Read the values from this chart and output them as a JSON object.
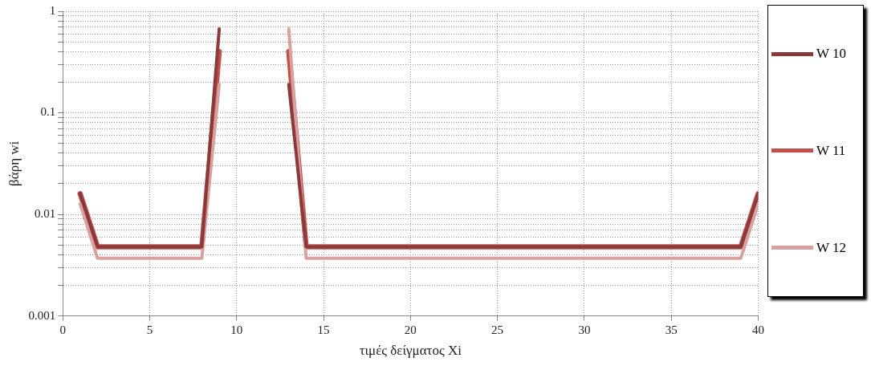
{
  "chart_data": {
    "type": "line",
    "xlabel": "τιμές δείγματος Xi",
    "ylabel": "βάρη wi",
    "log": "y",
    "grid": true,
    "legend": "right",
    "line_style": "solid",
    "marker": "none",
    "x": [
      1,
      2,
      3,
      4,
      5,
      6,
      7,
      8,
      9,
      10,
      11,
      12,
      13,
      14,
      15,
      16,
      17,
      18,
      19,
      20,
      21,
      22,
      23,
      24,
      25,
      26,
      27,
      28,
      29,
      30,
      31,
      32,
      33,
      34,
      35,
      36,
      37,
      38,
      39,
      40
    ],
    "xlim": [
      0,
      40
    ],
    "xticks": [
      0,
      5,
      10,
      15,
      20,
      25,
      30,
      35,
      40
    ],
    "ylim": [
      0.001,
      1
    ],
    "yticks": [
      0.001,
      {
        "value": 0.002,
        "label": null
      },
      {
        "value": 0.003,
        "label": null
      },
      {
        "value": 0.004,
        "label": null
      },
      {
        "value": 0.005,
        "label": null
      },
      {
        "value": 0.006,
        "label": null
      },
      {
        "value": 0.007,
        "label": null
      },
      {
        "value": 0.008,
        "label": null
      },
      {
        "value": 0.009,
        "label": null
      },
      0.01,
      {
        "value": 0.02,
        "label": null
      },
      {
        "value": 0.03,
        "label": null
      },
      {
        "value": 0.04,
        "label": null
      },
      {
        "value": 0.05,
        "label": null
      },
      {
        "value": 0.06,
        "label": null
      },
      {
        "value": 0.07,
        "label": null
      },
      {
        "value": 0.08,
        "label": null
      },
      {
        "value": 0.09,
        "label": null
      },
      0.1,
      {
        "value": 0.2,
        "label": null
      },
      {
        "value": 0.3,
        "label": null
      },
      {
        "value": 0.4,
        "label": null
      },
      {
        "value": 0.5,
        "label": null
      },
      {
        "value": 0.6,
        "label": null
      },
      {
        "value": 0.7,
        "label": null
      },
      {
        "value": 0.8,
        "label": null
      },
      {
        "value": 0.9,
        "label": null
      },
      1
    ],
    "series": [
      {
        "name": "W 10",
        "color": "#8b3a3a",
        "values": [
          0.016,
          0.0048,
          0.0048,
          0.0048,
          0.0048,
          0.0048,
          0.0048,
          0.0048,
          0.67,
          null,
          null,
          null,
          0.19,
          0.0048,
          0.0048,
          0.0048,
          0.0048,
          0.0048,
          0.0048,
          0.0048,
          0.0048,
          0.0048,
          0.0048,
          0.0048,
          0.0048,
          0.0048,
          0.0048,
          0.0048,
          0.0048,
          0.0048,
          0.0048,
          0.0048,
          0.0048,
          0.0048,
          0.0048,
          0.0048,
          0.0048,
          0.0048,
          0.0048,
          0.016
        ]
      },
      {
        "name": "W 11",
        "color": "#c0504d",
        "values": [
          0.016,
          0.0048,
          0.0048,
          0.0048,
          0.0048,
          0.0048,
          0.0048,
          0.0048,
          0.4,
          null,
          null,
          null,
          0.4,
          0.0048,
          0.0048,
          0.0048,
          0.0048,
          0.0048,
          0.0048,
          0.0048,
          0.0048,
          0.0048,
          0.0048,
          0.0048,
          0.0048,
          0.0048,
          0.0048,
          0.0048,
          0.0048,
          0.0048,
          0.0048,
          0.0048,
          0.0048,
          0.0048,
          0.0048,
          0.0048,
          0.0048,
          0.0048,
          0.0048,
          0.016
        ]
      },
      {
        "name": "W 12",
        "color": "#d9a0a0",
        "values": [
          0.0127,
          0.0037,
          0.0037,
          0.0037,
          0.0037,
          0.0037,
          0.0037,
          0.0037,
          0.19,
          null,
          null,
          null,
          0.67,
          0.0037,
          0.0037,
          0.0037,
          0.0037,
          0.0037,
          0.0037,
          0.0037,
          0.0037,
          0.0037,
          0.0037,
          0.0037,
          0.0037,
          0.0037,
          0.0037,
          0.0037,
          0.0037,
          0.0037,
          0.0037,
          0.0037,
          0.0037,
          0.0037,
          0.0037,
          0.0037,
          0.0037,
          0.0037,
          0.0037,
          0.0127
        ]
      }
    ]
  }
}
